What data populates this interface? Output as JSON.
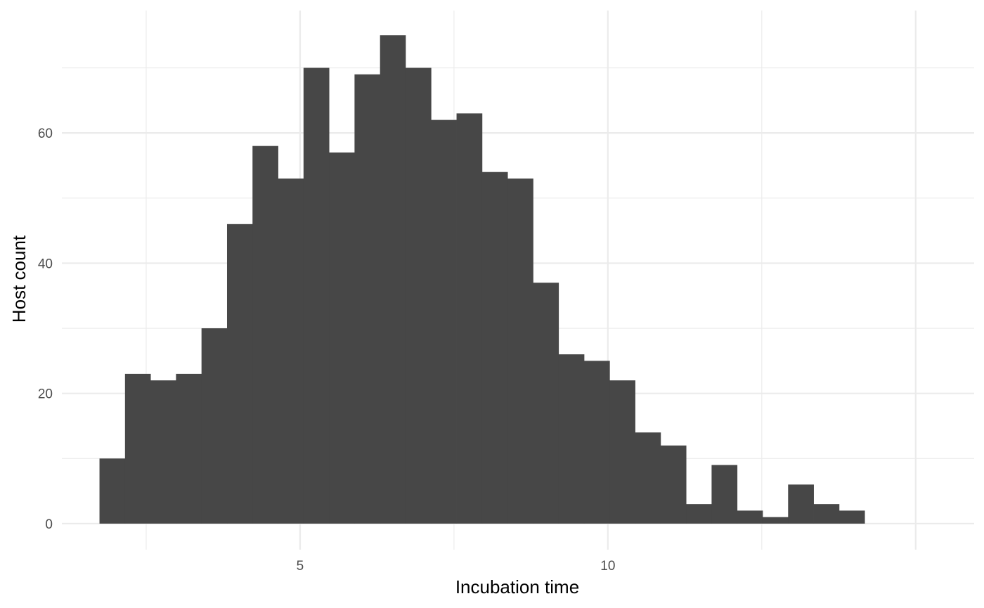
{
  "chart_data": {
    "type": "bar",
    "subtype": "histogram",
    "title": "",
    "xlabel": "Incubation time",
    "ylabel": "Host count",
    "xlim": [
      1.13,
      15.95
    ],
    "ylim": [
      -4.0,
      78.8
    ],
    "x_ticks": [
      5,
      10
    ],
    "y_ticks": [
      0,
      20,
      40,
      60
    ],
    "grid": true,
    "bar_color": "#474747",
    "bin_width": 0.4143,
    "bin_start": 1.7414,
    "values": [
      10,
      23,
      22,
      23,
      30,
      46,
      58,
      53,
      70,
      57,
      69,
      75,
      70,
      62,
      63,
      54,
      53,
      37,
      26,
      25,
      22,
      14,
      12,
      3,
      9,
      2,
      1,
      6,
      3,
      2
    ]
  }
}
